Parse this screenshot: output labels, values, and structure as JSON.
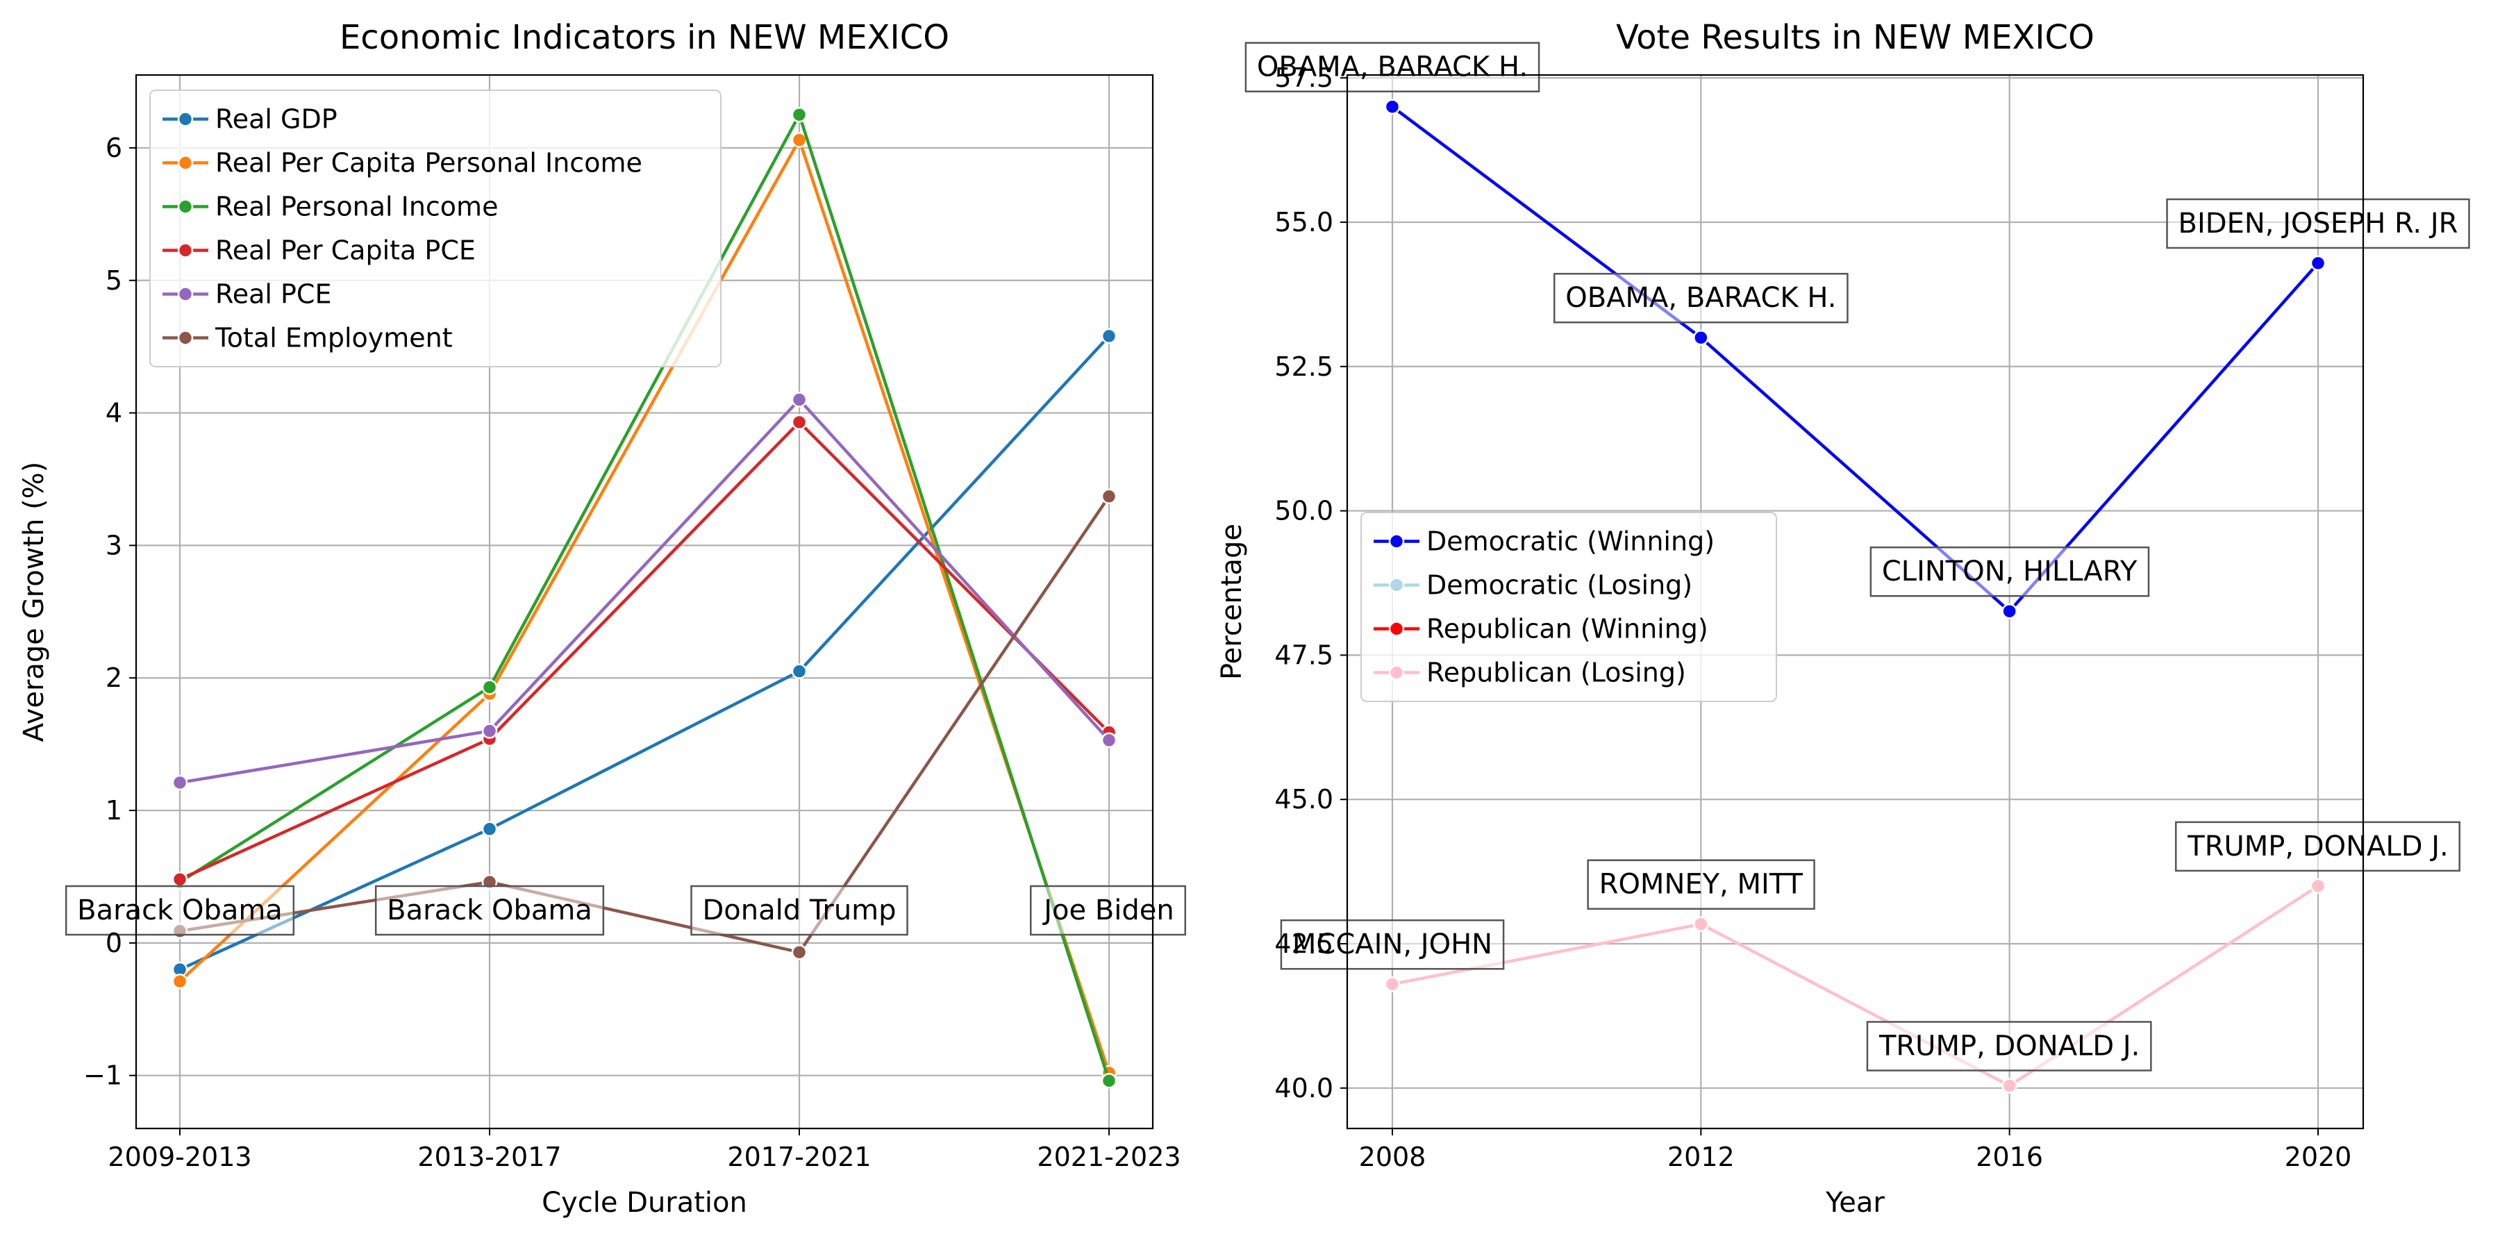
{
  "chart_data": [
    {
      "type": "line",
      "title": "Economic Indicators in NEW MEXICO",
      "xlabel": "Cycle Duration",
      "ylabel": "Average Growth (%)",
      "categories": [
        "2009-2013",
        "2013-2017",
        "2017-2021",
        "2021-2023"
      ],
      "ylim": [
        -1.4,
        6.55
      ],
      "yticks": [
        -1,
        0,
        1,
        2,
        3,
        4,
        5,
        6
      ],
      "ytick_labels": [
        "−1",
        "0",
        "1",
        "2",
        "3",
        "4",
        "5",
        "6"
      ],
      "grid": true,
      "legend_position": "top-left",
      "series": [
        {
          "name": "Real GDP",
          "color": "#1f77b4",
          "values": [
            -0.2,
            0.86,
            2.05,
            4.58
          ]
        },
        {
          "name": "Real Per Capita Personal Income",
          "color": "#ff7f0e",
          "values": [
            -0.29,
            1.88,
            6.06,
            -0.98
          ]
        },
        {
          "name": "Real Personal Income",
          "color": "#2ca02c",
          "values": [
            0.46,
            1.93,
            6.25,
            -1.04
          ]
        },
        {
          "name": "Real Per Capita PCE",
          "color": "#d62728",
          "values": [
            0.48,
            1.54,
            3.93,
            1.59
          ]
        },
        {
          "name": "Real PCE",
          "color": "#9467bd",
          "values": [
            1.21,
            1.6,
            4.1,
            1.53
          ]
        },
        {
          "name": "Total Employment",
          "color": "#8c564b",
          "values": [
            0.09,
            0.46,
            -0.07,
            3.37
          ]
        }
      ],
      "annotations": [
        {
          "text": "Barack Obama",
          "x": "2009-2013",
          "y": 0.3
        },
        {
          "text": "Barack Obama",
          "x": "2013-2017",
          "y": 0.3
        },
        {
          "text": "Donald Trump",
          "x": "2017-2021",
          "y": 0.3
        },
        {
          "text": "Joe Biden",
          "x": "2021-2023",
          "y": 0.3
        }
      ]
    },
    {
      "type": "line",
      "title": "Vote Results in NEW MEXICO",
      "xlabel": "Year",
      "ylabel": "Percentage",
      "x": [
        2008,
        2012,
        2016,
        2020
      ],
      "ylim": [
        39.3,
        57.55
      ],
      "yticks": [
        40.0,
        42.5,
        45.0,
        47.5,
        50.0,
        52.5,
        55.0,
        57.5
      ],
      "ytick_labels": [
        "40.0",
        "42.5",
        "45.0",
        "47.5",
        "50.0",
        "52.5",
        "55.0",
        "57.5"
      ],
      "grid": true,
      "legend_position": "center-left",
      "legend": [
        {
          "name": "Democratic (Winning)",
          "color": "#0000ff"
        },
        {
          "name": "Democratic (Losing)",
          "color": "#add8e6"
        },
        {
          "name": "Republican (Winning)",
          "color": "#ff0000"
        },
        {
          "name": "Republican (Losing)",
          "color": "#ffc0cb"
        }
      ],
      "series": [
        {
          "name": "Democratic",
          "color": "#0000ff",
          "x": [
            2008,
            2012,
            2016,
            2020
          ],
          "values": [
            57.0,
            53.0,
            48.26,
            54.29
          ]
        },
        {
          "name": "Republican",
          "color": "#ffc0cb",
          "x": [
            2008,
            2012,
            2016,
            2020
          ],
          "values": [
            41.8,
            42.84,
            40.04,
            43.5
          ]
        }
      ],
      "annotations": [
        {
          "text": "OBAMA, BARACK H.",
          "x": 2008,
          "y": 57.0,
          "offset": "above"
        },
        {
          "text": "OBAMA, BARACK H.",
          "x": 2012,
          "y": 53.0,
          "offset": "above"
        },
        {
          "text": "CLINTON, HILLARY",
          "x": 2016,
          "y": 48.26,
          "offset": "above"
        },
        {
          "text": "BIDEN, JOSEPH R. JR",
          "x": 2020,
          "y": 54.29,
          "offset": "above"
        },
        {
          "text": "MCCAIN, JOHN",
          "x": 2008,
          "y": 41.8,
          "offset": "above"
        },
        {
          "text": "ROMNEY, MITT",
          "x": 2012,
          "y": 42.84,
          "offset": "above"
        },
        {
          "text": "TRUMP, DONALD J.",
          "x": 2016,
          "y": 40.04,
          "offset": "above"
        },
        {
          "text": "TRUMP, DONALD J.",
          "x": 2020,
          "y": 43.5,
          "offset": "above"
        }
      ]
    }
  ]
}
